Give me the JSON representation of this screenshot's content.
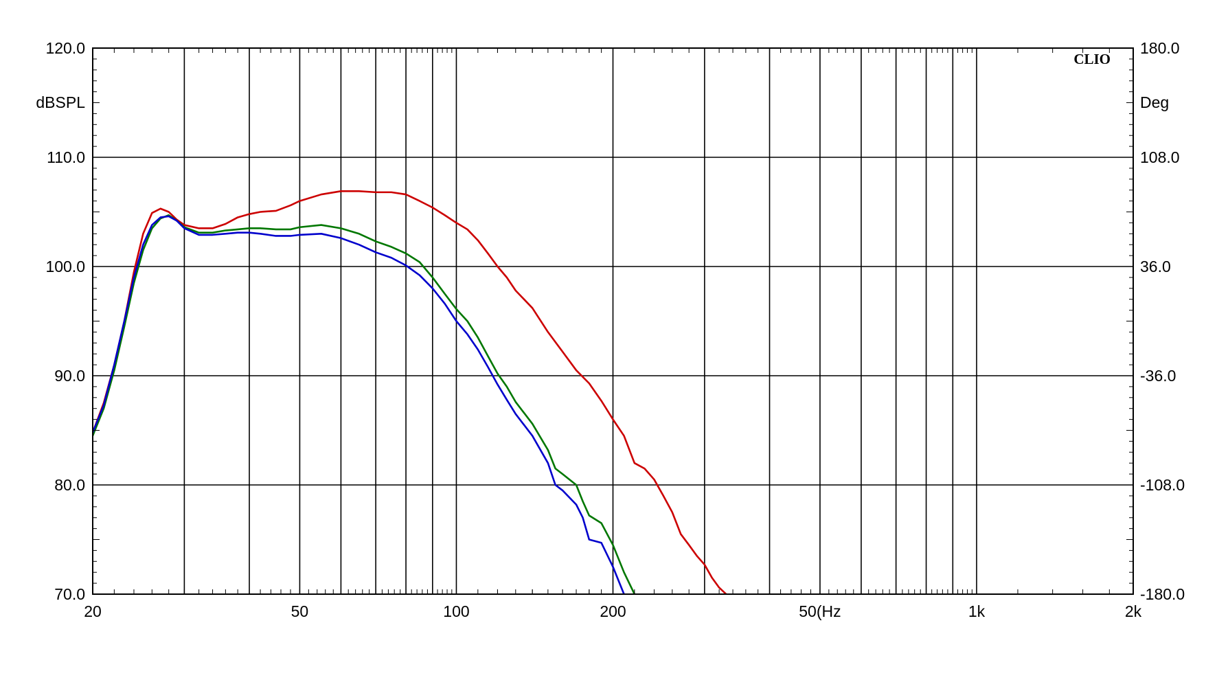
{
  "chart_data": {
    "type": "line",
    "brand": "CLIO",
    "x_scale": "log",
    "xlim": [
      20,
      2000
    ],
    "ylim": [
      70,
      120
    ],
    "y2lim": [
      -180,
      180
    ],
    "ylabel": "dBSPL",
    "y2label": "Deg",
    "x_ticks": [
      {
        "value": 20,
        "label": "20"
      },
      {
        "value": 50,
        "label": "50"
      },
      {
        "value": 100,
        "label": "100"
      },
      {
        "value": 200,
        "label": "200"
      },
      {
        "value": 500,
        "label": "50(Hz"
      },
      {
        "value": 1000,
        "label": "1k"
      },
      {
        "value": 2000,
        "label": "2k"
      }
    ],
    "x_grid": [
      30,
      40,
      50,
      60,
      70,
      80,
      90,
      100,
      200,
      300,
      400,
      500,
      600,
      700,
      800,
      900,
      1000
    ],
    "y_ticks": [
      {
        "value": 70,
        "label": "70.0"
      },
      {
        "value": 80,
        "label": "80.0"
      },
      {
        "value": 90,
        "label": "90.0"
      },
      {
        "value": 100,
        "label": "100.0"
      },
      {
        "value": 110,
        "label": "110.0"
      },
      {
        "value": 120,
        "label": "120.0"
      }
    ],
    "y2_ticks": [
      {
        "value": -180,
        "label": "-180.0"
      },
      {
        "value": -108,
        "label": "-108.0"
      },
      {
        "value": -36,
        "label": "-36.0"
      },
      {
        "value": 36,
        "label": "36.0"
      },
      {
        "value": 108,
        "label": "108.0"
      },
      {
        "value": 180,
        "label": "180.0"
      }
    ],
    "grid": true,
    "series": [
      {
        "color": "#cc0000",
        "points": [
          [
            20,
            84.8
          ],
          [
            21,
            87.5
          ],
          [
            22,
            91
          ],
          [
            23,
            95
          ],
          [
            24,
            99.5
          ],
          [
            25,
            103
          ],
          [
            26,
            104.9
          ],
          [
            27,
            105.3
          ],
          [
            28,
            105
          ],
          [
            29,
            104.3
          ],
          [
            30,
            103.8
          ],
          [
            32,
            103.5
          ],
          [
            34,
            103.5
          ],
          [
            36,
            103.9
          ],
          [
            38,
            104.5
          ],
          [
            40,
            104.8
          ],
          [
            42,
            105
          ],
          [
            45,
            105.1
          ],
          [
            48,
            105.6
          ],
          [
            50,
            106
          ],
          [
            55,
            106.6
          ],
          [
            60,
            106.9
          ],
          [
            65,
            106.9
          ],
          [
            70,
            106.8
          ],
          [
            75,
            106.8
          ],
          [
            80,
            106.6
          ],
          [
            85,
            106
          ],
          [
            90,
            105.4
          ],
          [
            95,
            104.7
          ],
          [
            100,
            104
          ],
          [
            105,
            103.4
          ],
          [
            110,
            102.4
          ],
          [
            115,
            101.2
          ],
          [
            120,
            100
          ],
          [
            125,
            99
          ],
          [
            130,
            97.8
          ],
          [
            140,
            96.2
          ],
          [
            150,
            94
          ],
          [
            160,
            92.2
          ],
          [
            170,
            90.5
          ],
          [
            180,
            89.3
          ],
          [
            190,
            87.7
          ],
          [
            200,
            86
          ],
          [
            210,
            84.5
          ],
          [
            220,
            82
          ],
          [
            230,
            81.5
          ],
          [
            240,
            80.5
          ],
          [
            250,
            79
          ],
          [
            260,
            77.5
          ],
          [
            270,
            75.5
          ],
          [
            280,
            74.5
          ],
          [
            290,
            73.5
          ],
          [
            300,
            72.7
          ],
          [
            310,
            71.5
          ],
          [
            320,
            70.6
          ],
          [
            330,
            70
          ]
        ]
      },
      {
        "color": "#007700",
        "points": [
          [
            20,
            84.5
          ],
          [
            21,
            87
          ],
          [
            22,
            90.5
          ],
          [
            23,
            94.5
          ],
          [
            24,
            98.5
          ],
          [
            25,
            101.5
          ],
          [
            26,
            103.5
          ],
          [
            27,
            104.4
          ],
          [
            28,
            104.7
          ],
          [
            29,
            104.2
          ],
          [
            30,
            103.6
          ],
          [
            32,
            103.1
          ],
          [
            34,
            103.1
          ],
          [
            36,
            103.3
          ],
          [
            38,
            103.4
          ],
          [
            40,
            103.5
          ],
          [
            42,
            103.5
          ],
          [
            45,
            103.4
          ],
          [
            48,
            103.4
          ],
          [
            50,
            103.6
          ],
          [
            55,
            103.8
          ],
          [
            60,
            103.5
          ],
          [
            65,
            103
          ],
          [
            70,
            102.3
          ],
          [
            75,
            101.8
          ],
          [
            80,
            101.2
          ],
          [
            85,
            100.4
          ],
          [
            90,
            99
          ],
          [
            95,
            97.5
          ],
          [
            100,
            96.1
          ],
          [
            105,
            95
          ],
          [
            110,
            93.5
          ],
          [
            115,
            91.8
          ],
          [
            120,
            90.2
          ],
          [
            125,
            89
          ],
          [
            130,
            87.6
          ],
          [
            140,
            85.6
          ],
          [
            150,
            83.2
          ],
          [
            155,
            81.5
          ],
          [
            160,
            81
          ],
          [
            170,
            80
          ],
          [
            175,
            78.5
          ],
          [
            180,
            77.2
          ],
          [
            190,
            76.5
          ],
          [
            200,
            74.5
          ],
          [
            210,
            72
          ],
          [
            220,
            70
          ]
        ]
      },
      {
        "color": "#0000cc",
        "points": [
          [
            20,
            84.8
          ],
          [
            21,
            87.3
          ],
          [
            22,
            91
          ],
          [
            23,
            95
          ],
          [
            24,
            99
          ],
          [
            25,
            102
          ],
          [
            26,
            103.8
          ],
          [
            27,
            104.5
          ],
          [
            28,
            104.6
          ],
          [
            29,
            104.2
          ],
          [
            30,
            103.5
          ],
          [
            32,
            102.9
          ],
          [
            34,
            102.9
          ],
          [
            36,
            103
          ],
          [
            38,
            103.1
          ],
          [
            40,
            103.1
          ],
          [
            42,
            103
          ],
          [
            45,
            102.8
          ],
          [
            48,
            102.8
          ],
          [
            50,
            102.9
          ],
          [
            55,
            103
          ],
          [
            60,
            102.6
          ],
          [
            65,
            102
          ],
          [
            70,
            101.3
          ],
          [
            75,
            100.8
          ],
          [
            80,
            100.1
          ],
          [
            85,
            99.2
          ],
          [
            90,
            98
          ],
          [
            95,
            96.6
          ],
          [
            100,
            95
          ],
          [
            105,
            93.8
          ],
          [
            110,
            92.4
          ],
          [
            115,
            90.8
          ],
          [
            120,
            89.2
          ],
          [
            125,
            87.8
          ],
          [
            130,
            86.5
          ],
          [
            140,
            84.5
          ],
          [
            150,
            82
          ],
          [
            155,
            80
          ],
          [
            160,
            79.5
          ],
          [
            170,
            78.2
          ],
          [
            175,
            77
          ],
          [
            180,
            75
          ],
          [
            190,
            74.7
          ],
          [
            200,
            72.5
          ],
          [
            210,
            70
          ]
        ]
      }
    ]
  }
}
